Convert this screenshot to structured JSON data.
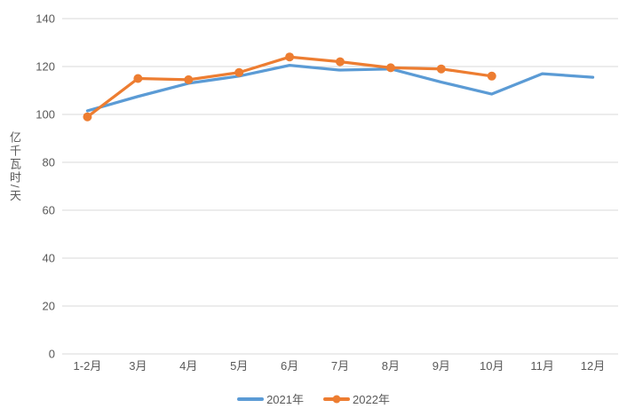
{
  "chart_data": {
    "type": "line",
    "title": "",
    "xlabel": "",
    "ylabel": "亿千瓦时/天",
    "categories": [
      "1-2月",
      "3月",
      "4月",
      "5月",
      "6月",
      "7月",
      "8月",
      "9月",
      "10月",
      "11月",
      "12月"
    ],
    "series": [
      {
        "name": "2021年",
        "color": "#5B9BD5",
        "marker": "none",
        "values": [
          101.5,
          107.5,
          113,
          116,
          120.5,
          118.5,
          119,
          113.5,
          108.5,
          117,
          115.5
        ]
      },
      {
        "name": "2022年",
        "color": "#ED7D31",
        "marker": "circle",
        "values": [
          99,
          115,
          114.5,
          117.5,
          124,
          122,
          119.5,
          119,
          116,
          null,
          null
        ]
      }
    ],
    "ylim": [
      0,
      140
    ],
    "ytick_step": 20,
    "yticks": [
      "0",
      "20",
      "40",
      "60",
      "80",
      "100",
      "120",
      "140"
    ],
    "grid": "horizontal-only",
    "legend_position": "bottom-center",
    "colors": {
      "grid": "#D9D9D9",
      "axis_text": "#595959",
      "background": "#FFFFFF"
    }
  }
}
